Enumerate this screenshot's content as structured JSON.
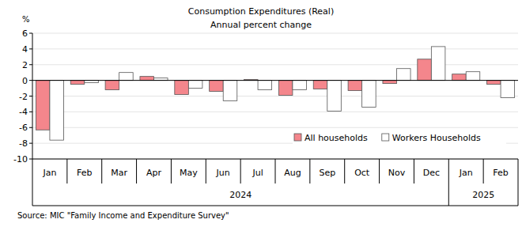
{
  "chart_data": {
    "type": "bar",
    "title": "Consumption  Expenditures (Real)",
    "subtitle": "Annual  percent change",
    "y_label": "%",
    "source": "Source: MIC \"Family Income and Expenditure Survey\"",
    "categories": [
      "Jan",
      "Feb",
      "Mar",
      "Apr",
      "May",
      "Jun",
      "Jul",
      "Aug",
      "Sep",
      "Oct",
      "Nov",
      "Dec",
      "Jan",
      "Feb"
    ],
    "x_groups": [
      {
        "label": "2024",
        "count": 12
      },
      {
        "label": "2025",
        "count": 2
      }
    ],
    "series": [
      {
        "name": "All households",
        "color": "#f4868c",
        "values": [
          -6.3,
          -0.5,
          -1.2,
          0.5,
          -1.8,
          -1.4,
          0.1,
          -1.9,
          -1.1,
          -1.3,
          -0.4,
          2.7,
          0.8,
          -0.5
        ]
      },
      {
        "name": "Workers Households",
        "color": "#ffffff",
        "values": [
          -7.6,
          -0.3,
          1.0,
          0.3,
          -1.0,
          -2.6,
          -1.2,
          -1.2,
          -3.9,
          -3.4,
          1.5,
          4.3,
          1.1,
          -2.2
        ]
      }
    ],
    "ylim": [
      -10,
      6
    ],
    "yticks": [
      -10,
      -8,
      -6,
      -4,
      -2,
      0,
      2,
      4,
      6
    ],
    "grid": true,
    "legend": "lower right"
  }
}
